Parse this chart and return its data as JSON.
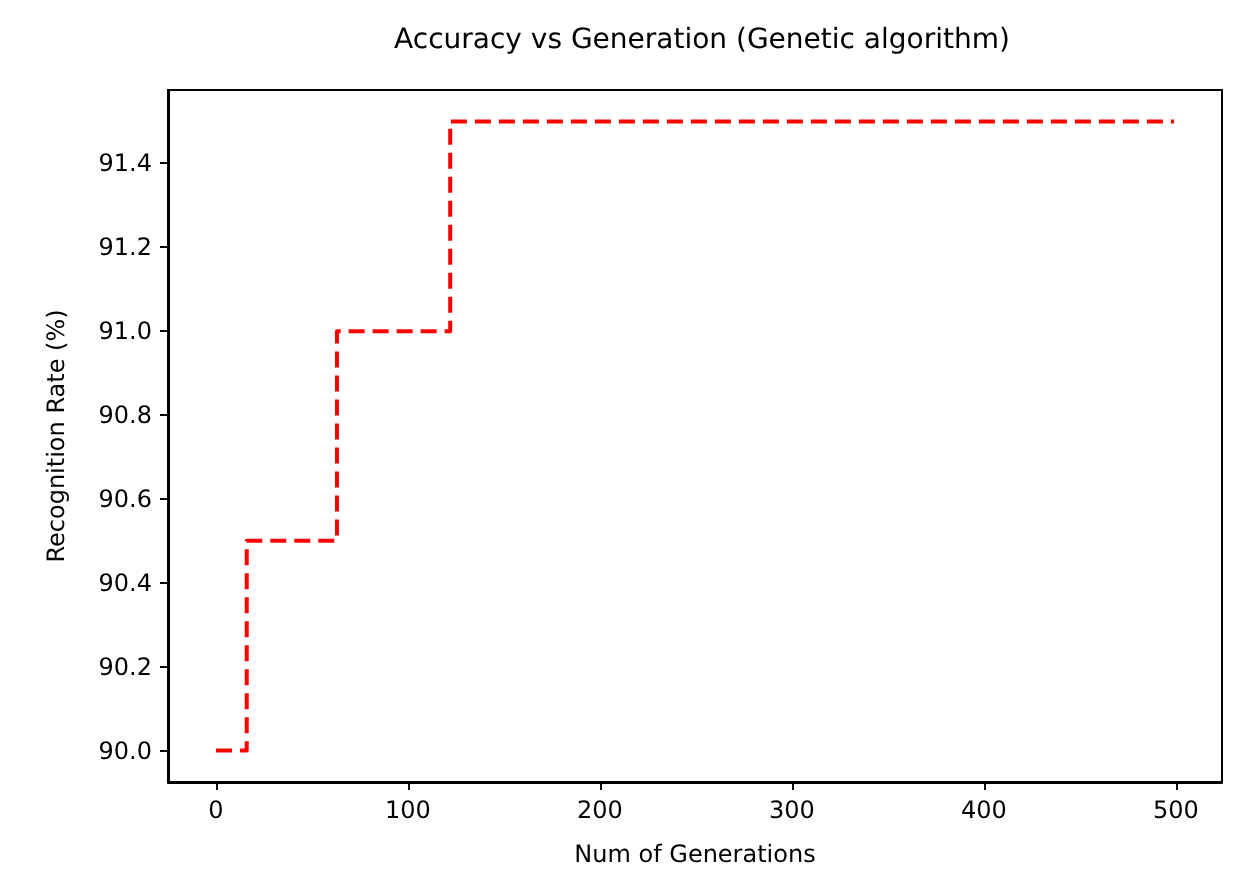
{
  "chart_data": {
    "type": "step",
    "title": "Accuracy vs Generation (Genetic algorithm)",
    "xlabel": "Num of Generations",
    "ylabel": "Recognition Rate (%)",
    "x": [
      0,
      16,
      63,
      122,
      499
    ],
    "series": [
      {
        "color": "#ff0000",
        "values": [
          90.0,
          90.5,
          91.0,
          91.5,
          91.5
        ]
      }
    ],
    "line_style": "dashed",
    "grid": false,
    "xlim": [
      -25,
      524
    ],
    "xticks": [
      0,
      100,
      200,
      300,
      400,
      500
    ],
    "ylim": [
      89.925,
      91.575
    ],
    "yticks": [
      {
        "value": 90.0,
        "label": "90.0"
      },
      {
        "value": 90.2,
        "label": "90.2"
      },
      {
        "value": 90.4,
        "label": "90.4"
      },
      {
        "value": 90.6,
        "label": "90.6"
      },
      {
        "value": 90.8,
        "label": "90.8"
      },
      {
        "value": 91.0,
        "label": "91.0"
      },
      {
        "value": 91.2,
        "label": "91.2"
      },
      {
        "value": 91.4,
        "label": "91.4"
      }
    ]
  }
}
